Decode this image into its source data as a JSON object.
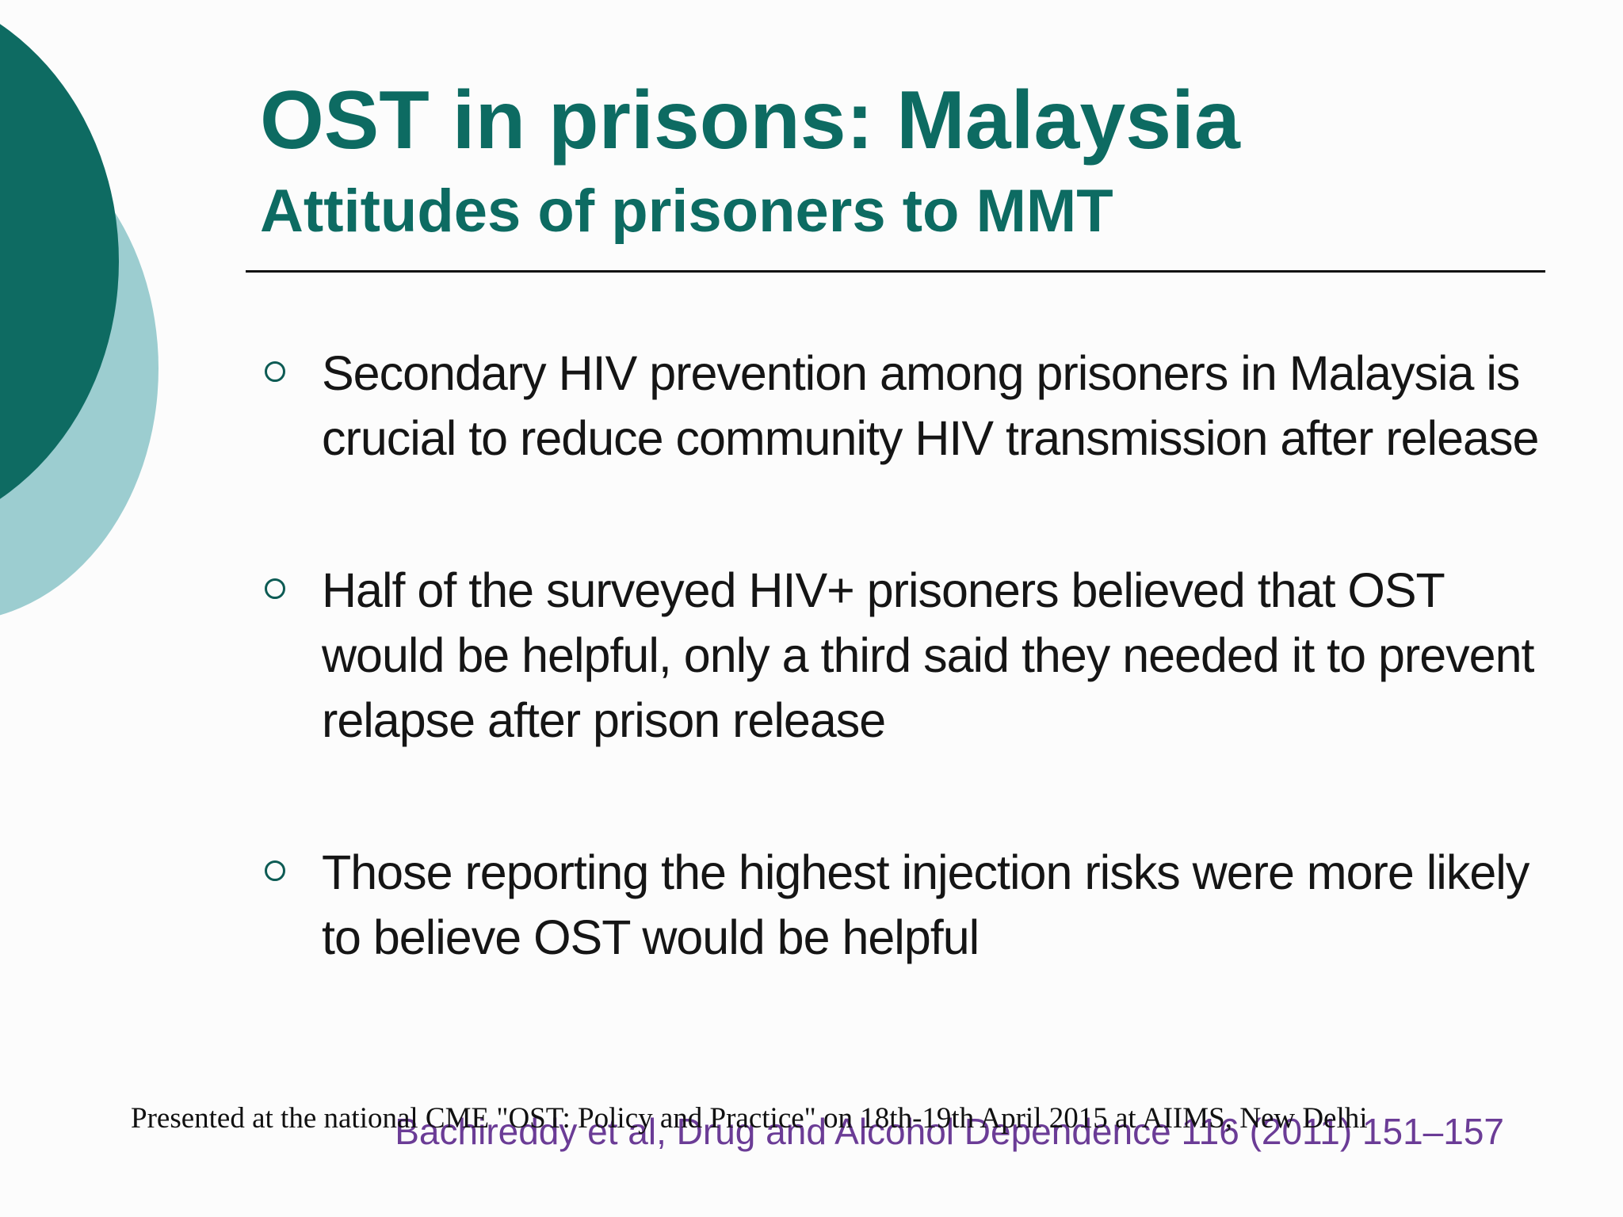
{
  "slide": {
    "title": "OST in prisons: Malaysia",
    "subtitle": "Attitudes of prisoners to MMT",
    "bullets": [
      "Secondary HIV prevention among prisoners in Malaysia is crucial to reduce community HIV transmission after release",
      "Half of the surveyed HIV+ prisoners believed that OST would be helpful, only a third said they needed it to prevent relapse after prison release",
      "Those reporting the highest injection risks were more likely to believe OST would be helpful"
    ],
    "citation": "Bachireddy et al, Drug and Alcohol Dependence 116 (2011) 151–157",
    "footer_note": "Presented at the national CME \"OST: Policy and Practice\" on 18th-19th April 2015 at AIIMS, New Delhi"
  },
  "colors": {
    "title": "#0d6b62",
    "circle_dark": "#0e6b62",
    "circle_light": "#9ccdd0",
    "body_text": "#151515",
    "citation": "#6b3c96"
  },
  "icons": {
    "bullet": "hollow-circle-bullet-icon"
  }
}
